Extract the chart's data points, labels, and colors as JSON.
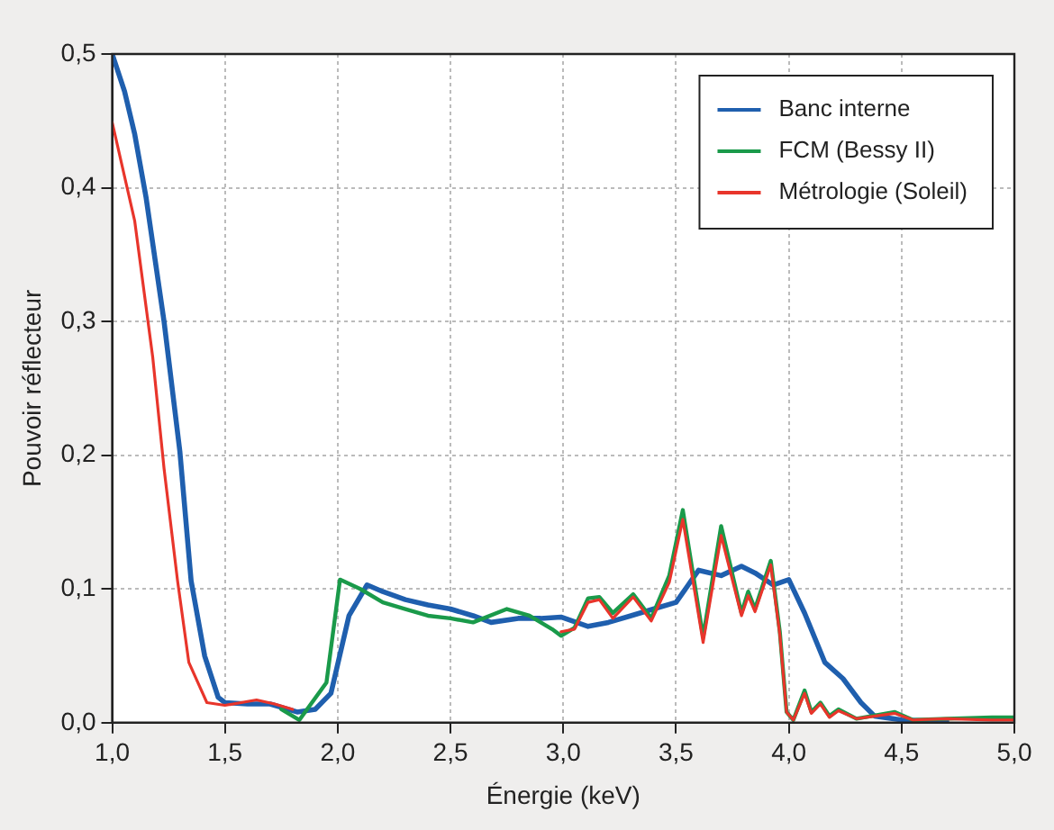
{
  "chart_data": {
    "type": "line",
    "xlabel": "Énergie (keV)",
    "ylabel": "Pouvoir réflecteur",
    "xlim": [
      1.0,
      5.0
    ],
    "xticks": [
      {
        "value": 1.0,
        "label": "1,0"
      },
      {
        "value": 1.5,
        "label": "1,5"
      },
      {
        "value": 2.0,
        "label": "2,0"
      },
      {
        "value": 2.5,
        "label": "2,5"
      },
      {
        "value": 3.0,
        "label": "3,0"
      },
      {
        "value": 3.5,
        "label": "3,5"
      },
      {
        "value": 4.0,
        "label": "4,0"
      },
      {
        "value": 4.5,
        "label": "4,5"
      },
      {
        "value": 5.0,
        "label": "5,0"
      }
    ],
    "ylim": [
      0,
      0.5
    ],
    "yticks": [
      {
        "value": 0,
        "label": "0,0"
      },
      {
        "value": 0.1,
        "label": "0,1"
      },
      {
        "value": 0.2,
        "label": "0,2"
      },
      {
        "value": 0.3,
        "label": "0,3"
      },
      {
        "value": 0.4,
        "label": "0,4"
      },
      {
        "value": 0.5,
        "label": "0,5"
      }
    ],
    "grid": true,
    "legend": "top right",
    "marker": "none",
    "line_style": "solid",
    "series": [
      {
        "name": "Banc interne",
        "color": "#1f5fae",
        "x": [
          1.0,
          1.055,
          1.1,
          1.15,
          1.23,
          1.3,
          1.35,
          1.41,
          1.47,
          1.5,
          1.6,
          1.7,
          1.82,
          1.9,
          1.97,
          2.05,
          2.13,
          2.2,
          2.3,
          2.4,
          2.5,
          2.6,
          2.68,
          2.8,
          2.9,
          2.99,
          3.11,
          3.2,
          3.3,
          3.4,
          3.5,
          3.6,
          3.7,
          3.79,
          3.85,
          3.93,
          4.0,
          4.07,
          4.16,
          4.24,
          4.32,
          4.38,
          4.5,
          4.7
        ],
        "values": [
          0.5,
          0.472,
          0.44,
          0.393,
          0.3,
          0.203,
          0.106,
          0.05,
          0.019,
          0.015,
          0.014,
          0.014,
          0.008,
          0.01,
          0.022,
          0.08,
          0.103,
          0.098,
          0.092,
          0.088,
          0.085,
          0.08,
          0.075,
          0.078,
          0.078,
          0.079,
          0.072,
          0.075,
          0.08,
          0.085,
          0.09,
          0.114,
          0.11,
          0.117,
          0.112,
          0.103,
          0.107,
          0.082,
          0.045,
          0.033,
          0.015,
          0.005,
          0.002,
          0.001
        ]
      },
      {
        "name": "FCM (Bessy II)",
        "color": "#1a9a4a",
        "x": [
          1.75,
          1.83,
          1.95,
          2.01,
          2.1,
          2.2,
          2.3,
          2.4,
          2.5,
          2.6,
          2.75,
          2.85,
          2.95,
          2.99,
          3.05,
          3.11,
          3.16,
          3.22,
          3.31,
          3.39,
          3.47,
          3.53,
          3.62,
          3.7,
          3.79,
          3.82,
          3.85,
          3.92,
          3.96,
          3.99,
          4.02,
          4.07,
          4.1,
          4.14,
          4.18,
          4.22,
          4.3,
          4.47,
          4.55,
          4.7,
          4.9,
          5.0
        ],
        "values": [
          0.01,
          0.002,
          0.03,
          0.107,
          0.1,
          0.09,
          0.085,
          0.08,
          0.078,
          0.075,
          0.085,
          0.08,
          0.07,
          0.065,
          0.071,
          0.093,
          0.094,
          0.082,
          0.096,
          0.078,
          0.11,
          0.159,
          0.064,
          0.147,
          0.082,
          0.098,
          0.085,
          0.121,
          0.068,
          0.008,
          0.002,
          0.024,
          0.008,
          0.015,
          0.005,
          0.01,
          0.003,
          0.008,
          0.002,
          0.003,
          0.004,
          0.004
        ]
      },
      {
        "name": "Métrologie (Soleil)",
        "color": "#e8352b",
        "x": [
          1.0,
          1.1,
          1.18,
          1.23,
          1.29,
          1.34,
          1.42,
          1.5,
          1.64,
          1.72,
          1.8,
          2.4,
          2.99,
          3.05,
          3.11,
          3.16,
          3.22,
          3.31,
          3.39,
          3.47,
          3.53,
          3.62,
          3.7,
          3.79,
          3.82,
          3.85,
          3.92,
          3.96,
          3.99,
          4.02,
          4.07,
          4.1,
          4.14,
          4.18,
          4.22,
          4.3,
          4.47,
          4.55,
          4.7,
          4.9,
          5.0
        ],
        "values": [
          0.449,
          0.375,
          0.273,
          0.19,
          0.106,
          0.045,
          0.015,
          0.013,
          0.017,
          0.014,
          0.01,
          null,
          0.068,
          0.07,
          0.09,
          0.092,
          0.078,
          0.094,
          0.076,
          0.105,
          0.152,
          0.06,
          0.14,
          0.08,
          0.095,
          0.083,
          0.118,
          0.066,
          0.008,
          0.002,
          0.022,
          0.007,
          0.014,
          0.004,
          0.009,
          0.003,
          0.007,
          0.002,
          0.003,
          0.002,
          0.002
        ]
      }
    ]
  }
}
